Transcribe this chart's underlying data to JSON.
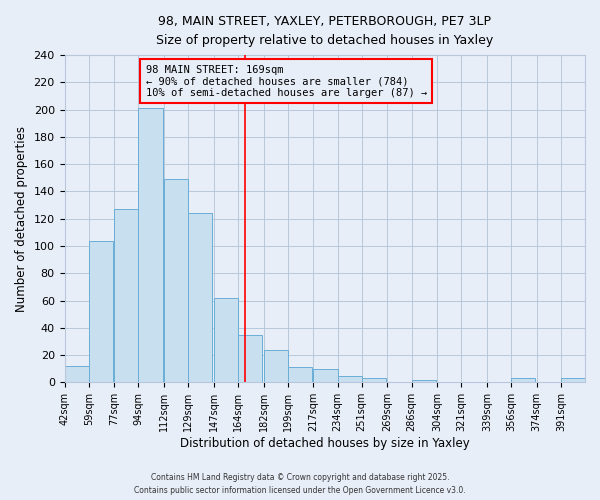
{
  "title_line1": "98, MAIN STREET, YAXLEY, PETERBOROUGH, PE7 3LP",
  "title_line2": "Size of property relative to detached houses in Yaxley",
  "xlabel": "Distribution of detached houses by size in Yaxley",
  "ylabel": "Number of detached properties",
  "bin_labels": [
    "42sqm",
    "59sqm",
    "77sqm",
    "94sqm",
    "112sqm",
    "129sqm",
    "147sqm",
    "164sqm",
    "182sqm",
    "199sqm",
    "217sqm",
    "234sqm",
    "251sqm",
    "269sqm",
    "286sqm",
    "304sqm",
    "321sqm",
    "339sqm",
    "356sqm",
    "374sqm",
    "391sqm"
  ],
  "bin_edges": [
    42,
    59,
    77,
    94,
    112,
    129,
    147,
    164,
    182,
    199,
    217,
    234,
    251,
    269,
    286,
    304,
    321,
    339,
    356,
    374,
    391
  ],
  "bar_values": [
    12,
    104,
    127,
    201,
    149,
    124,
    62,
    35,
    24,
    11,
    10,
    5,
    3,
    0,
    2,
    0,
    0,
    0,
    3,
    0,
    3
  ],
  "bar_color": "#c8dff0",
  "bar_edge_color": "#6aaed6",
  "property_size": 169,
  "vline_color": "red",
  "annotation_title": "98 MAIN STREET: 169sqm",
  "annotation_line2": "← 90% of detached houses are smaller (784)",
  "annotation_line3": "10% of semi-detached houses are larger (87) →",
  "annotation_box_color": "red",
  "ylim": [
    0,
    240
  ],
  "yticks": [
    0,
    20,
    40,
    60,
    80,
    100,
    120,
    140,
    160,
    180,
    200,
    220,
    240
  ],
  "footer_line1": "Contains HM Land Registry data © Crown copyright and database right 2025.",
  "footer_line2": "Contains public sector information licensed under the Open Government Licence v3.0.",
  "bg_color": "#e8eef8",
  "grid_color": "#b8c8dc"
}
